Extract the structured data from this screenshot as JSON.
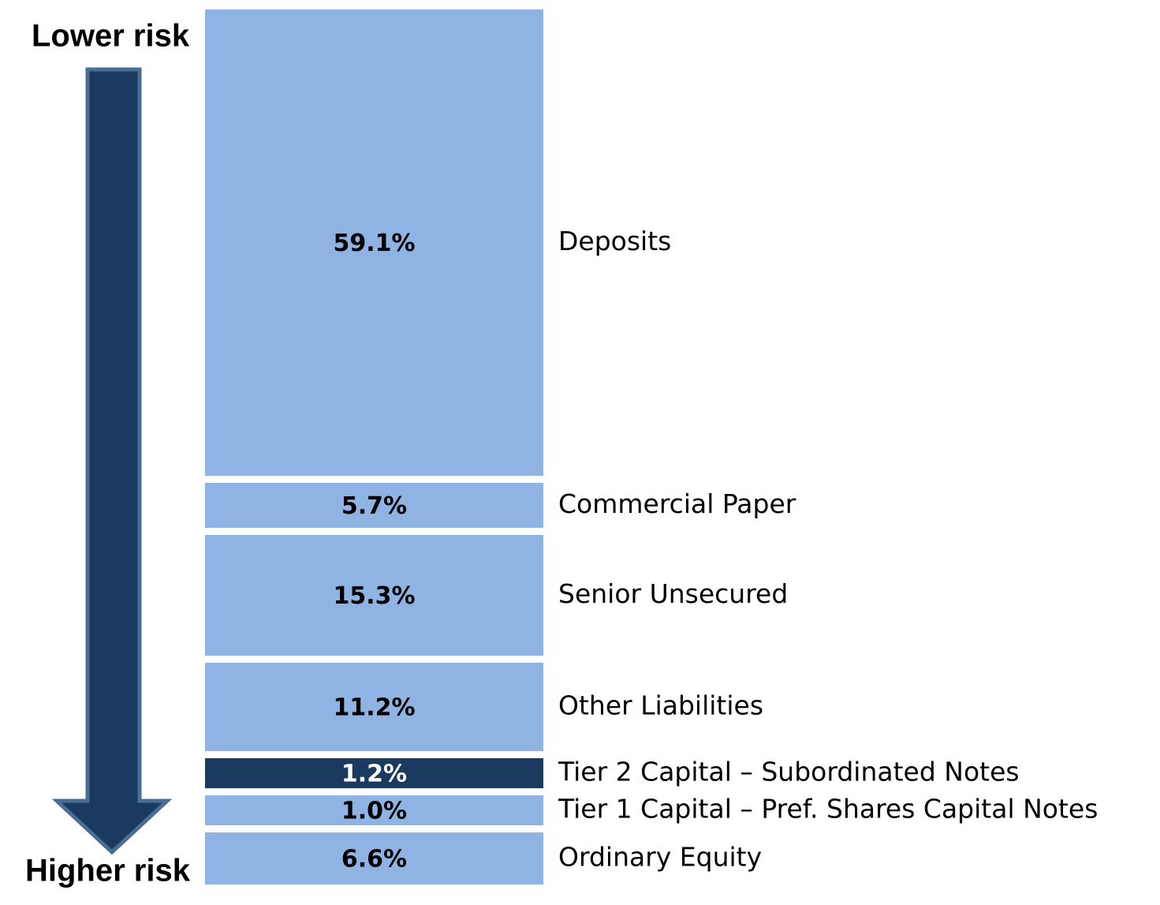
{
  "chart_data": {
    "type": "stacked_column",
    "annotations": [
      "Lower risk",
      "Higher risk"
    ],
    "categories": [
      "Deposits",
      "Commercial Paper",
      "Senior Unsecured",
      "Other Liabilities",
      "Tier 2 Capital – Subordinated Notes",
      "Tier 1 Capital – Pref. Shares Capital Notes",
      "Ordinary Equity"
    ],
    "values": [
      59.1,
      5.7,
      15.3,
      11.2,
      1.2,
      1.0,
      6.6
    ],
    "value_labels": [
      "59.1%",
      "5.7%",
      "15.3%",
      "11.2%",
      "1.2%",
      "1.0%",
      "6.6%"
    ],
    "colors": [
      "#8fb4e3",
      "#8fb4e3",
      "#8fb4e3",
      "#8fb4e3",
      "#1b3a5f",
      "#8fb4e3",
      "#8fb4e3"
    ]
  }
}
